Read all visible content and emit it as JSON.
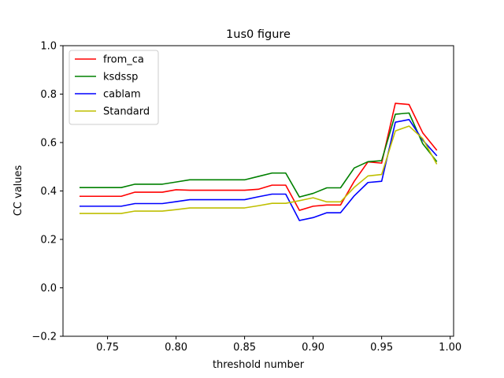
{
  "chart_data": {
    "type": "line",
    "title": "1us0 figure",
    "xlabel": "threshold number",
    "ylabel": "CC values",
    "xlim": [
      0.7175,
      1.0025
    ],
    "ylim": [
      -0.2,
      1.0
    ],
    "xticks": [
      0.75,
      0.8,
      0.85,
      0.9,
      0.95,
      1.0
    ],
    "xtick_labels": [
      "0.75",
      "0.80",
      "0.85",
      "0.90",
      "0.95",
      "1.00"
    ],
    "yticks": [
      -0.2,
      0.0,
      0.2,
      0.4,
      0.6,
      0.8,
      1.0
    ],
    "ytick_labels": [
      "−0.2",
      "0.0",
      "0.2",
      "0.4",
      "0.6",
      "0.8",
      "1.0"
    ],
    "grid": false,
    "legend_position": "top-left",
    "x": [
      0.73,
      0.74,
      0.75,
      0.76,
      0.77,
      0.78,
      0.79,
      0.8,
      0.81,
      0.82,
      0.83,
      0.84,
      0.85,
      0.86,
      0.87,
      0.88,
      0.89,
      0.9,
      0.91,
      0.92,
      0.93,
      0.94,
      0.95,
      0.96,
      0.97,
      0.98,
      0.99
    ],
    "series": [
      {
        "name": "from_ca",
        "color": "#ff0000",
        "values": [
          0.378,
          0.378,
          0.378,
          0.378,
          0.395,
          0.395,
          0.395,
          0.405,
          0.403,
          0.403,
          0.403,
          0.403,
          0.403,
          0.407,
          0.424,
          0.424,
          0.32,
          0.337,
          0.342,
          0.342,
          0.44,
          0.52,
          0.515,
          0.762,
          0.757,
          0.64,
          0.57
        ]
      },
      {
        "name": "ksdssp",
        "color": "#008000",
        "values": [
          0.414,
          0.414,
          0.414,
          0.414,
          0.428,
          0.428,
          0.428,
          0.437,
          0.446,
          0.446,
          0.446,
          0.446,
          0.446,
          0.46,
          0.474,
          0.474,
          0.375,
          0.39,
          0.413,
          0.413,
          0.495,
          0.521,
          0.525,
          0.717,
          0.722,
          0.595,
          0.523
        ]
      },
      {
        "name": "cablam",
        "color": "#0000ff",
        "values": [
          0.337,
          0.337,
          0.337,
          0.337,
          0.348,
          0.348,
          0.348,
          0.356,
          0.364,
          0.364,
          0.364,
          0.364,
          0.364,
          0.376,
          0.387,
          0.387,
          0.278,
          0.29,
          0.31,
          0.31,
          0.38,
          0.435,
          0.44,
          0.684,
          0.695,
          0.61,
          0.547
        ]
      },
      {
        "name": "Standard",
        "color": "#bfbf00",
        "values": [
          0.307,
          0.307,
          0.307,
          0.307,
          0.317,
          0.317,
          0.317,
          0.323,
          0.33,
          0.33,
          0.33,
          0.33,
          0.33,
          0.339,
          0.349,
          0.349,
          0.36,
          0.372,
          0.355,
          0.355,
          0.415,
          0.462,
          0.468,
          0.648,
          0.668,
          0.616,
          0.513
        ]
      }
    ]
  }
}
